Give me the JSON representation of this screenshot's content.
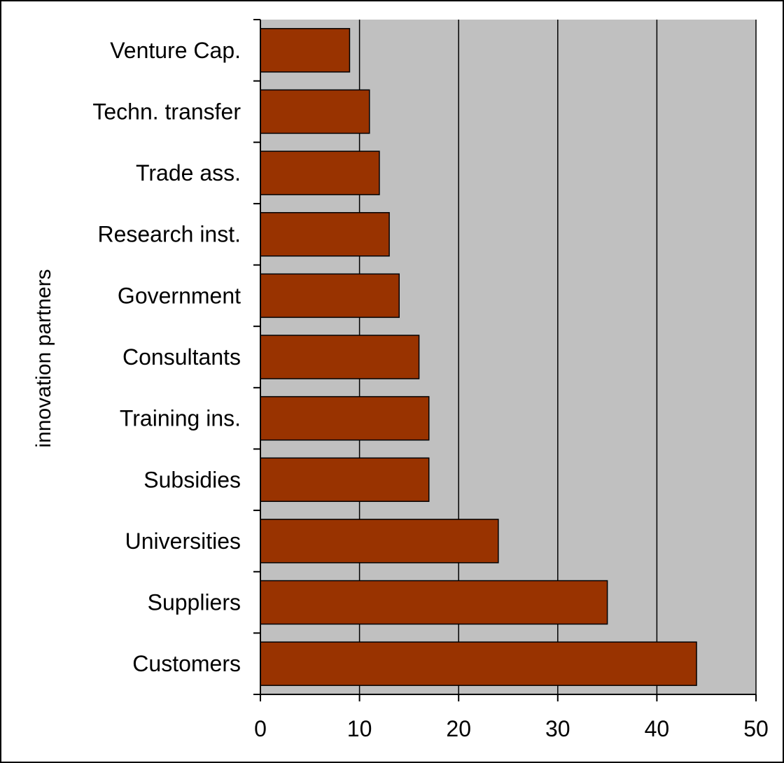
{
  "chart_data": {
    "type": "bar",
    "orientation": "horizontal",
    "categories": [
      "Venture Cap.",
      "Techn. transfer",
      "Trade ass.",
      "Research inst.",
      "Government",
      "Consultants",
      "Training ins.",
      "Subsidies",
      "Universities",
      "Suppliers",
      "Customers"
    ],
    "values": [
      9,
      11,
      12,
      13,
      14,
      16,
      17,
      17,
      24,
      35,
      44
    ],
    "title": "",
    "xlabel": "",
    "ylabel": "innovation partners",
    "xlim": [
      0,
      50
    ],
    "xticks": [
      0,
      10,
      20,
      30,
      40,
      50
    ],
    "xtick_labels": [
      "0",
      "10",
      "20",
      "30",
      "40",
      "50"
    ],
    "grid": "vertical",
    "legend": "none",
    "colors": {
      "bar": "#993300",
      "plot_background": "#c0c0c0",
      "gridline": "#000000"
    }
  }
}
